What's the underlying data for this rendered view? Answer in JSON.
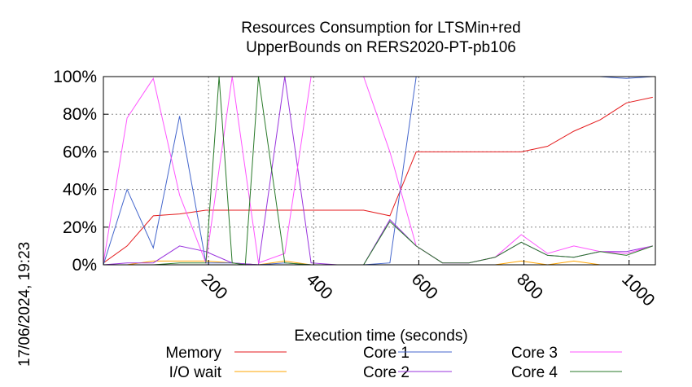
{
  "chart_data": {
    "type": "line",
    "title_lines": [
      "Resources Consumption for LTSMin+red",
      "UpperBounds on RERS2020-PT-pb106"
    ],
    "xlabel": "Execution time (seconds)",
    "ylabel": "",
    "xlim": [
      0,
      1050
    ],
    "ylim": [
      0,
      100
    ],
    "x_ticks": [
      "200",
      "400",
      "600",
      "800",
      "1000"
    ],
    "x_tick_values": [
      200,
      400,
      600,
      800,
      1000
    ],
    "y_ticks": [
      "0%",
      "20%",
      "40%",
      "60%",
      "80%",
      "100%"
    ],
    "y_tick_values": [
      0,
      20,
      40,
      60,
      80,
      100
    ],
    "grid": true,
    "legend_position": "bottom",
    "timestamp": "17/06/2024, 19:23",
    "series": [
      {
        "name": "Memory",
        "color": "#e41a1c",
        "points": [
          [
            0,
            1
          ],
          [
            45,
            10
          ],
          [
            95,
            26
          ],
          [
            145,
            27
          ],
          [
            195,
            29
          ],
          [
            245,
            29
          ],
          [
            295,
            29
          ],
          [
            345,
            29
          ],
          [
            395,
            29
          ],
          [
            445,
            29
          ],
          [
            495,
            29
          ],
          [
            545,
            26
          ],
          [
            595,
            60
          ],
          [
            645,
            60
          ],
          [
            695,
            60
          ],
          [
            745,
            60
          ],
          [
            795,
            60
          ],
          [
            845,
            63
          ],
          [
            895,
            71
          ],
          [
            945,
            77
          ],
          [
            995,
            86
          ],
          [
            1045,
            89
          ]
        ]
      },
      {
        "name": "I/O wait",
        "color": "#ffa500",
        "points": [
          [
            0,
            0
          ],
          [
            45,
            0
          ],
          [
            95,
            2
          ],
          [
            145,
            2
          ],
          [
            195,
            2
          ],
          [
            245,
            1
          ],
          [
            295,
            0
          ],
          [
            345,
            2
          ],
          [
            395,
            0
          ],
          [
            445,
            0
          ],
          [
            495,
            0
          ],
          [
            545,
            0
          ],
          [
            595,
            0
          ],
          [
            645,
            0
          ],
          [
            695,
            0
          ],
          [
            745,
            0
          ],
          [
            795,
            2
          ],
          [
            845,
            0
          ],
          [
            895,
            2
          ],
          [
            945,
            0
          ],
          [
            995,
            0
          ],
          [
            1045,
            0
          ]
        ]
      },
      {
        "name": "Core 1",
        "color": "#4466cc",
        "points": [
          [
            0,
            0
          ],
          [
            45,
            40
          ],
          [
            95,
            9
          ],
          [
            145,
            79
          ],
          [
            195,
            1
          ],
          [
            245,
            1
          ],
          [
            295,
            0
          ],
          [
            345,
            1
          ],
          [
            395,
            0
          ],
          [
            445,
            0
          ],
          [
            495,
            0
          ],
          [
            545,
            1
          ],
          [
            595,
            100
          ],
          [
            645,
            100
          ],
          [
            695,
            100
          ],
          [
            745,
            100
          ],
          [
            795,
            100
          ],
          [
            845,
            100
          ],
          [
            895,
            100
          ],
          [
            945,
            100
          ],
          [
            995,
            99
          ],
          [
            1045,
            100
          ]
        ]
      },
      {
        "name": "Core 2",
        "color": "#9933dd",
        "points": [
          [
            0,
            0
          ],
          [
            45,
            1
          ],
          [
            95,
            1
          ],
          [
            145,
            10
          ],
          [
            195,
            7
          ],
          [
            245,
            1
          ],
          [
            295,
            0
          ],
          [
            345,
            100
          ],
          [
            395,
            1
          ],
          [
            445,
            0
          ],
          [
            495,
            0
          ],
          [
            545,
            24
          ],
          [
            595,
            10
          ],
          [
            645,
            1
          ],
          [
            695,
            1
          ],
          [
            745,
            4
          ],
          [
            795,
            12
          ],
          [
            845,
            5
          ],
          [
            895,
            4
          ],
          [
            945,
            7
          ],
          [
            995,
            7
          ],
          [
            1045,
            10
          ]
        ]
      },
      {
        "name": "Core 3",
        "color": "#ff55ff",
        "points": [
          [
            0,
            1
          ],
          [
            45,
            78
          ],
          [
            95,
            99
          ],
          [
            145,
            37
          ],
          [
            195,
            1
          ],
          [
            245,
            100
          ],
          [
            295,
            1
          ],
          [
            345,
            6
          ],
          [
            395,
            100
          ],
          [
            445,
            100
          ],
          [
            495,
            100
          ],
          [
            545,
            60
          ],
          [
            595,
            10
          ],
          [
            645,
            1
          ],
          [
            695,
            1
          ],
          [
            745,
            4
          ],
          [
            795,
            16
          ],
          [
            845,
            6
          ],
          [
            895,
            10
          ],
          [
            945,
            7
          ],
          [
            995,
            6
          ],
          [
            1045,
            10
          ]
        ]
      },
      {
        "name": "Core 4",
        "color": "#2a7a2a",
        "points": [
          [
            0,
            0
          ],
          [
            45,
            0
          ],
          [
            95,
            0
          ],
          [
            145,
            1
          ],
          [
            195,
            1
          ],
          [
            220,
            100
          ],
          [
            245,
            1
          ],
          [
            270,
            0
          ],
          [
            295,
            100
          ],
          [
            345,
            1
          ],
          [
            395,
            0
          ],
          [
            445,
            0
          ],
          [
            495,
            0
          ],
          [
            545,
            23
          ],
          [
            595,
            10
          ],
          [
            645,
            1
          ],
          [
            695,
            1
          ],
          [
            745,
            4
          ],
          [
            795,
            12
          ],
          [
            845,
            5
          ],
          [
            895,
            4
          ],
          [
            945,
            7
          ],
          [
            995,
            5
          ],
          [
            1045,
            10
          ]
        ]
      }
    ]
  }
}
